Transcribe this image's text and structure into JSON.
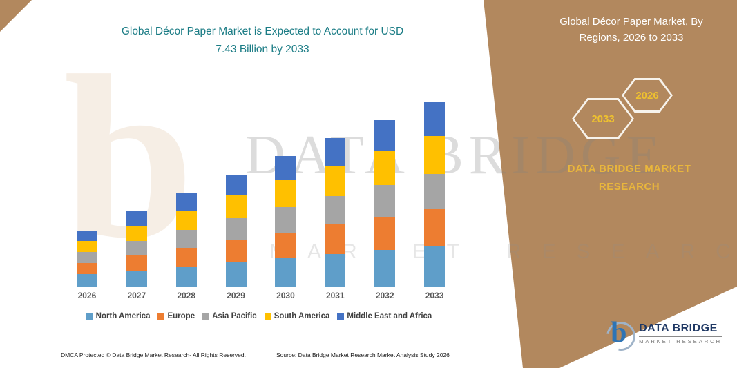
{
  "title": {
    "line1": "Global Décor Paper Market is Expected to Account for USD",
    "line2": "7.43 Billion by 2033"
  },
  "panel": {
    "title": "Global Décor Paper Market, By Regions, 2026 to 2033",
    "hex_back": "2033",
    "hex_front": "2026",
    "brand_line1": "DATA BRIDGE MARKET",
    "brand_line2": "RESEARCH"
  },
  "watermark": {
    "glyph": "b",
    "line1": "DATA BRIDGE",
    "line2": "MARKET RESEARCH"
  },
  "chart_data": {
    "type": "bar",
    "stacked": true,
    "title": "Global Décor Paper Market, By Regions, 2026 to 2033",
    "unit": "USD Billion",
    "categories": [
      "2026",
      "2027",
      "2028",
      "2029",
      "2030",
      "2031",
      "2032",
      "2033"
    ],
    "series": [
      {
        "name": "North America",
        "color": "#5f9ec9",
        "values": [
          0.5,
          0.65,
          0.82,
          1.0,
          1.15,
          1.32,
          1.48,
          1.65
        ]
      },
      {
        "name": "Europe",
        "color": "#ed7d31",
        "values": [
          0.45,
          0.6,
          0.74,
          0.88,
          1.02,
          1.17,
          1.3,
          1.45
        ]
      },
      {
        "name": "Asia Pacific",
        "color": "#a5a5a5",
        "values": [
          0.44,
          0.58,
          0.73,
          0.87,
          1.02,
          1.16,
          1.3,
          1.43
        ]
      },
      {
        "name": "South America",
        "color": "#ffc000",
        "values": [
          0.45,
          0.62,
          0.77,
          0.92,
          1.08,
          1.22,
          1.37,
          1.52
        ]
      },
      {
        "name": "Middle East and Africa",
        "color": "#4472c4",
        "values": [
          0.4,
          0.58,
          0.7,
          0.82,
          0.97,
          1.1,
          1.25,
          1.38
        ]
      }
    ],
    "totals": [
      2.24,
      3.03,
      3.76,
      4.49,
      5.24,
      5.97,
      6.7,
      7.43
    ],
    "ylim": [
      0,
      8
    ],
    "grid": false,
    "y_axis_visible": false,
    "legend_position": "bottom"
  },
  "footer": {
    "dmca": "DMCA Protected © Data Bridge Market Research-  All Rights Reserved.",
    "source": "Source: Data Bridge Market Research  Market Analysis Study 2026"
  },
  "logo": {
    "glyph": "b",
    "name": "DATA BRIDGE",
    "tagline": "MARKET RESEARCH"
  }
}
